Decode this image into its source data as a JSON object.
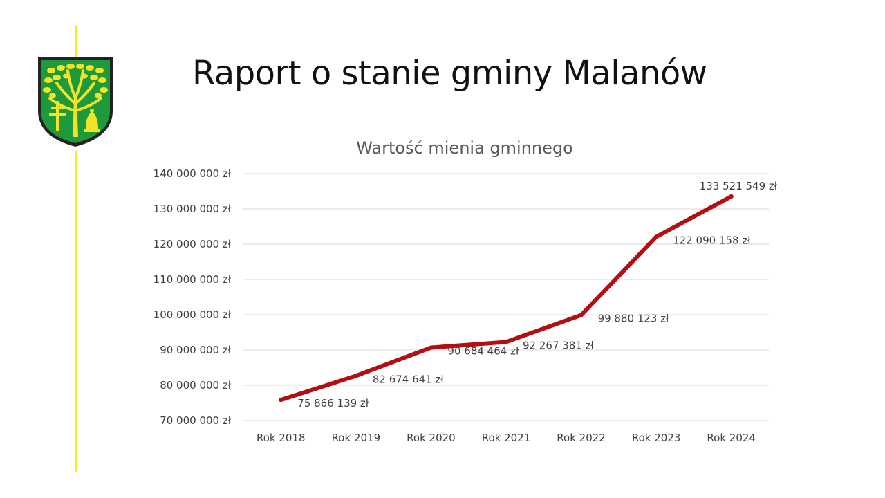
{
  "slide": {
    "title": "Raport o stanie gminy Malanów",
    "accent_color": "#f2ee1c",
    "logo": "malanow-coat-of-arms"
  },
  "chart_data": {
    "type": "line",
    "title": "Wartość mienia gminnego",
    "categories": [
      "Rok 2018",
      "Rok 2019",
      "Rok 2020",
      "Rok 2021",
      "Rok 2022",
      "Rok 2023",
      "Rok 2024"
    ],
    "series": [
      {
        "values": [
          75866139,
          82674641,
          90684464,
          92267381,
          99880123,
          122090158,
          133521549
        ],
        "labels": [
          "75 866 139 zł",
          "82 674 641 zł",
          "90 684 464 zł",
          "92 267 381 zł",
          "99 880 123 zł",
          "122 090 158 zł",
          "133 521 549 zł"
        ],
        "color": "#b30f12"
      }
    ],
    "ylim": [
      70000000,
      140000000
    ],
    "yticks": [
      {
        "value": 70000000,
        "label": "70 000 000 zł"
      },
      {
        "value": 80000000,
        "label": "80 000 000 zł"
      },
      {
        "value": 90000000,
        "label": "90 000 000 zł"
      },
      {
        "value": 100000000,
        "label": "100 000 000 zł"
      },
      {
        "value": 110000000,
        "label": "110 000 000 zł"
      },
      {
        "value": 120000000,
        "label": "120 000 000 zł"
      },
      {
        "value": 130000000,
        "label": "130 000 000 zł"
      },
      {
        "value": 140000000,
        "label": "140 000 000 zł"
      }
    ],
    "grid": true,
    "legend": "none"
  }
}
